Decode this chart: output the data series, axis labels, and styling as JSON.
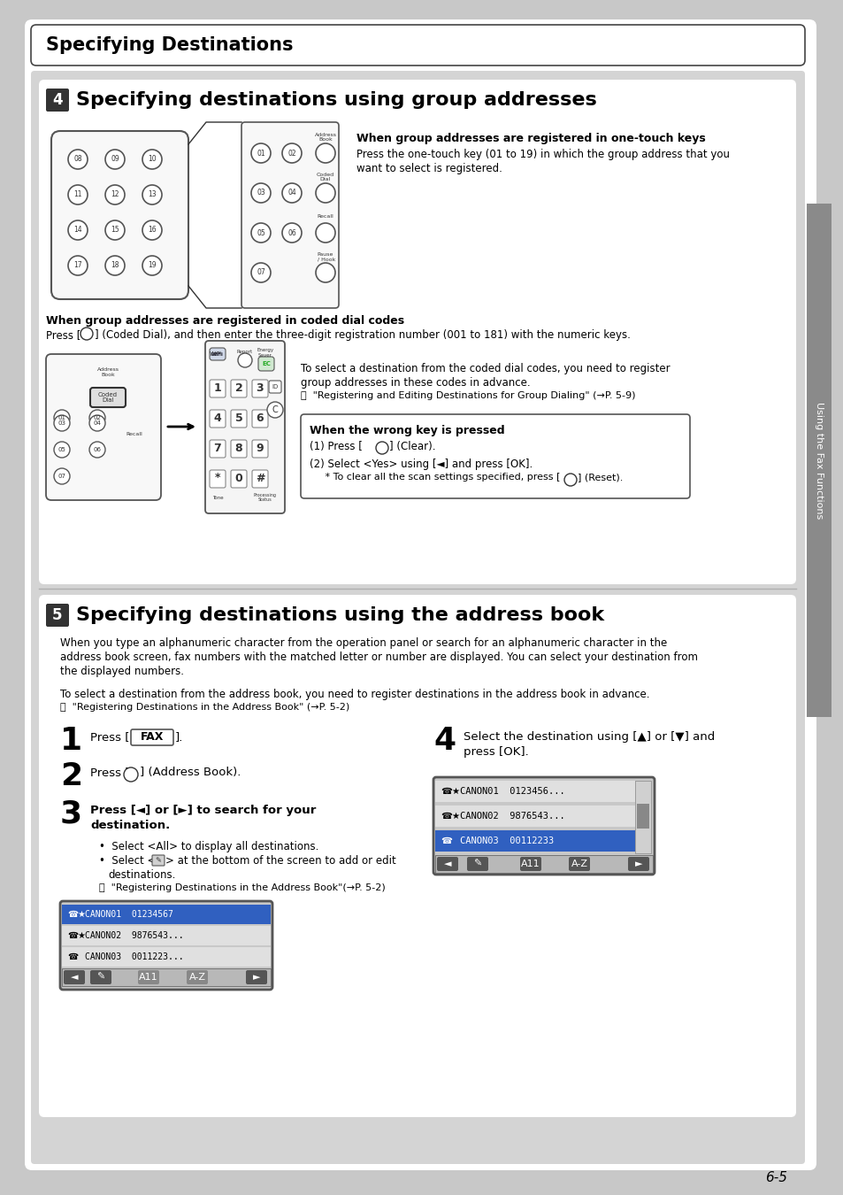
{
  "bg_color": "#c8c8c8",
  "page_bg": "#ffffff",
  "header_title": "Specifying Destinations",
  "section4_title": "Specifying destinations using group addresses",
  "section5_title": "Specifying destinations using the address book",
  "page_number": "6-5",
  "sidebar_text": "Using the Fax Functions",
  "one_touch_bold": "When group addresses are registered in one-touch keys",
  "one_touch_text1": "Press the one-touch key (01 to 19) in which the group address that you",
  "one_touch_text2": "want to select is registered.",
  "coded_bold": "When group addresses are registered in coded dial codes",
  "coded_text": "Press [   ] (Coded Dial), and then enter the three-digit registration number (001 to 181) with the numeric keys.",
  "coded_right1": "To select a destination from the coded dial codes, you need to register",
  "coded_right2": "group addresses in these codes in advance.",
  "coded_right3": "ⓘ  \"Registering and Editing Destinations for Group Dialing\" (→P. 5-9)",
  "warn_title": "When the wrong key is pressed",
  "warn_line1": "(1) Press [   ] (Clear).",
  "warn_line2": "(2) Select <Yes> using [◄] and press [OK].",
  "warn_line3": "     * To clear all the scan settings specified, press [   ] (Reset).",
  "sec5_intro1": "When you type an alphanumeric character from the operation panel or search for an alphanumeric character in the",
  "sec5_intro2": "address book screen, fax numbers with the matched letter or number are displayed. You can select your destination from",
  "sec5_intro3": "the displayed numbers.",
  "sec5_adv1": "To select a destination from the address book, you need to register destinations in the address book in advance.",
  "sec5_adv2": "ⓘ  \"Registering Destinations in the Address Book\" (→P. 5-2)",
  "step1_text": "Press [   FAX   ].",
  "step2_text": "Press [   ] (Address Book).",
  "step3_line1": "Press [◄] or [►] to search for your",
  "step3_line2": "destination.",
  "step3_b1": "Select <All> to display all destinations.",
  "step3_b2": "Select <   > at the bottom of the screen to add or edit",
  "step3_b2b": "destinations.",
  "step3_ref": "ⓘ  \"Registering Destinations in the Address Book\"(→P. 5-2)",
  "step4_line1": "Select the destination using [▲] or [▼] and",
  "step4_line2": "press [OK].",
  "disp1_rows": [
    "CANON01  01234567",
    "CANON02  9876543...",
    "CANON03  0011223..."
  ],
  "disp1_sel": 0,
  "disp2_rows": [
    "CANON01  0123456...",
    "CANON02  9876543...",
    "CANON03  00112233"
  ],
  "disp2_sel": 2
}
